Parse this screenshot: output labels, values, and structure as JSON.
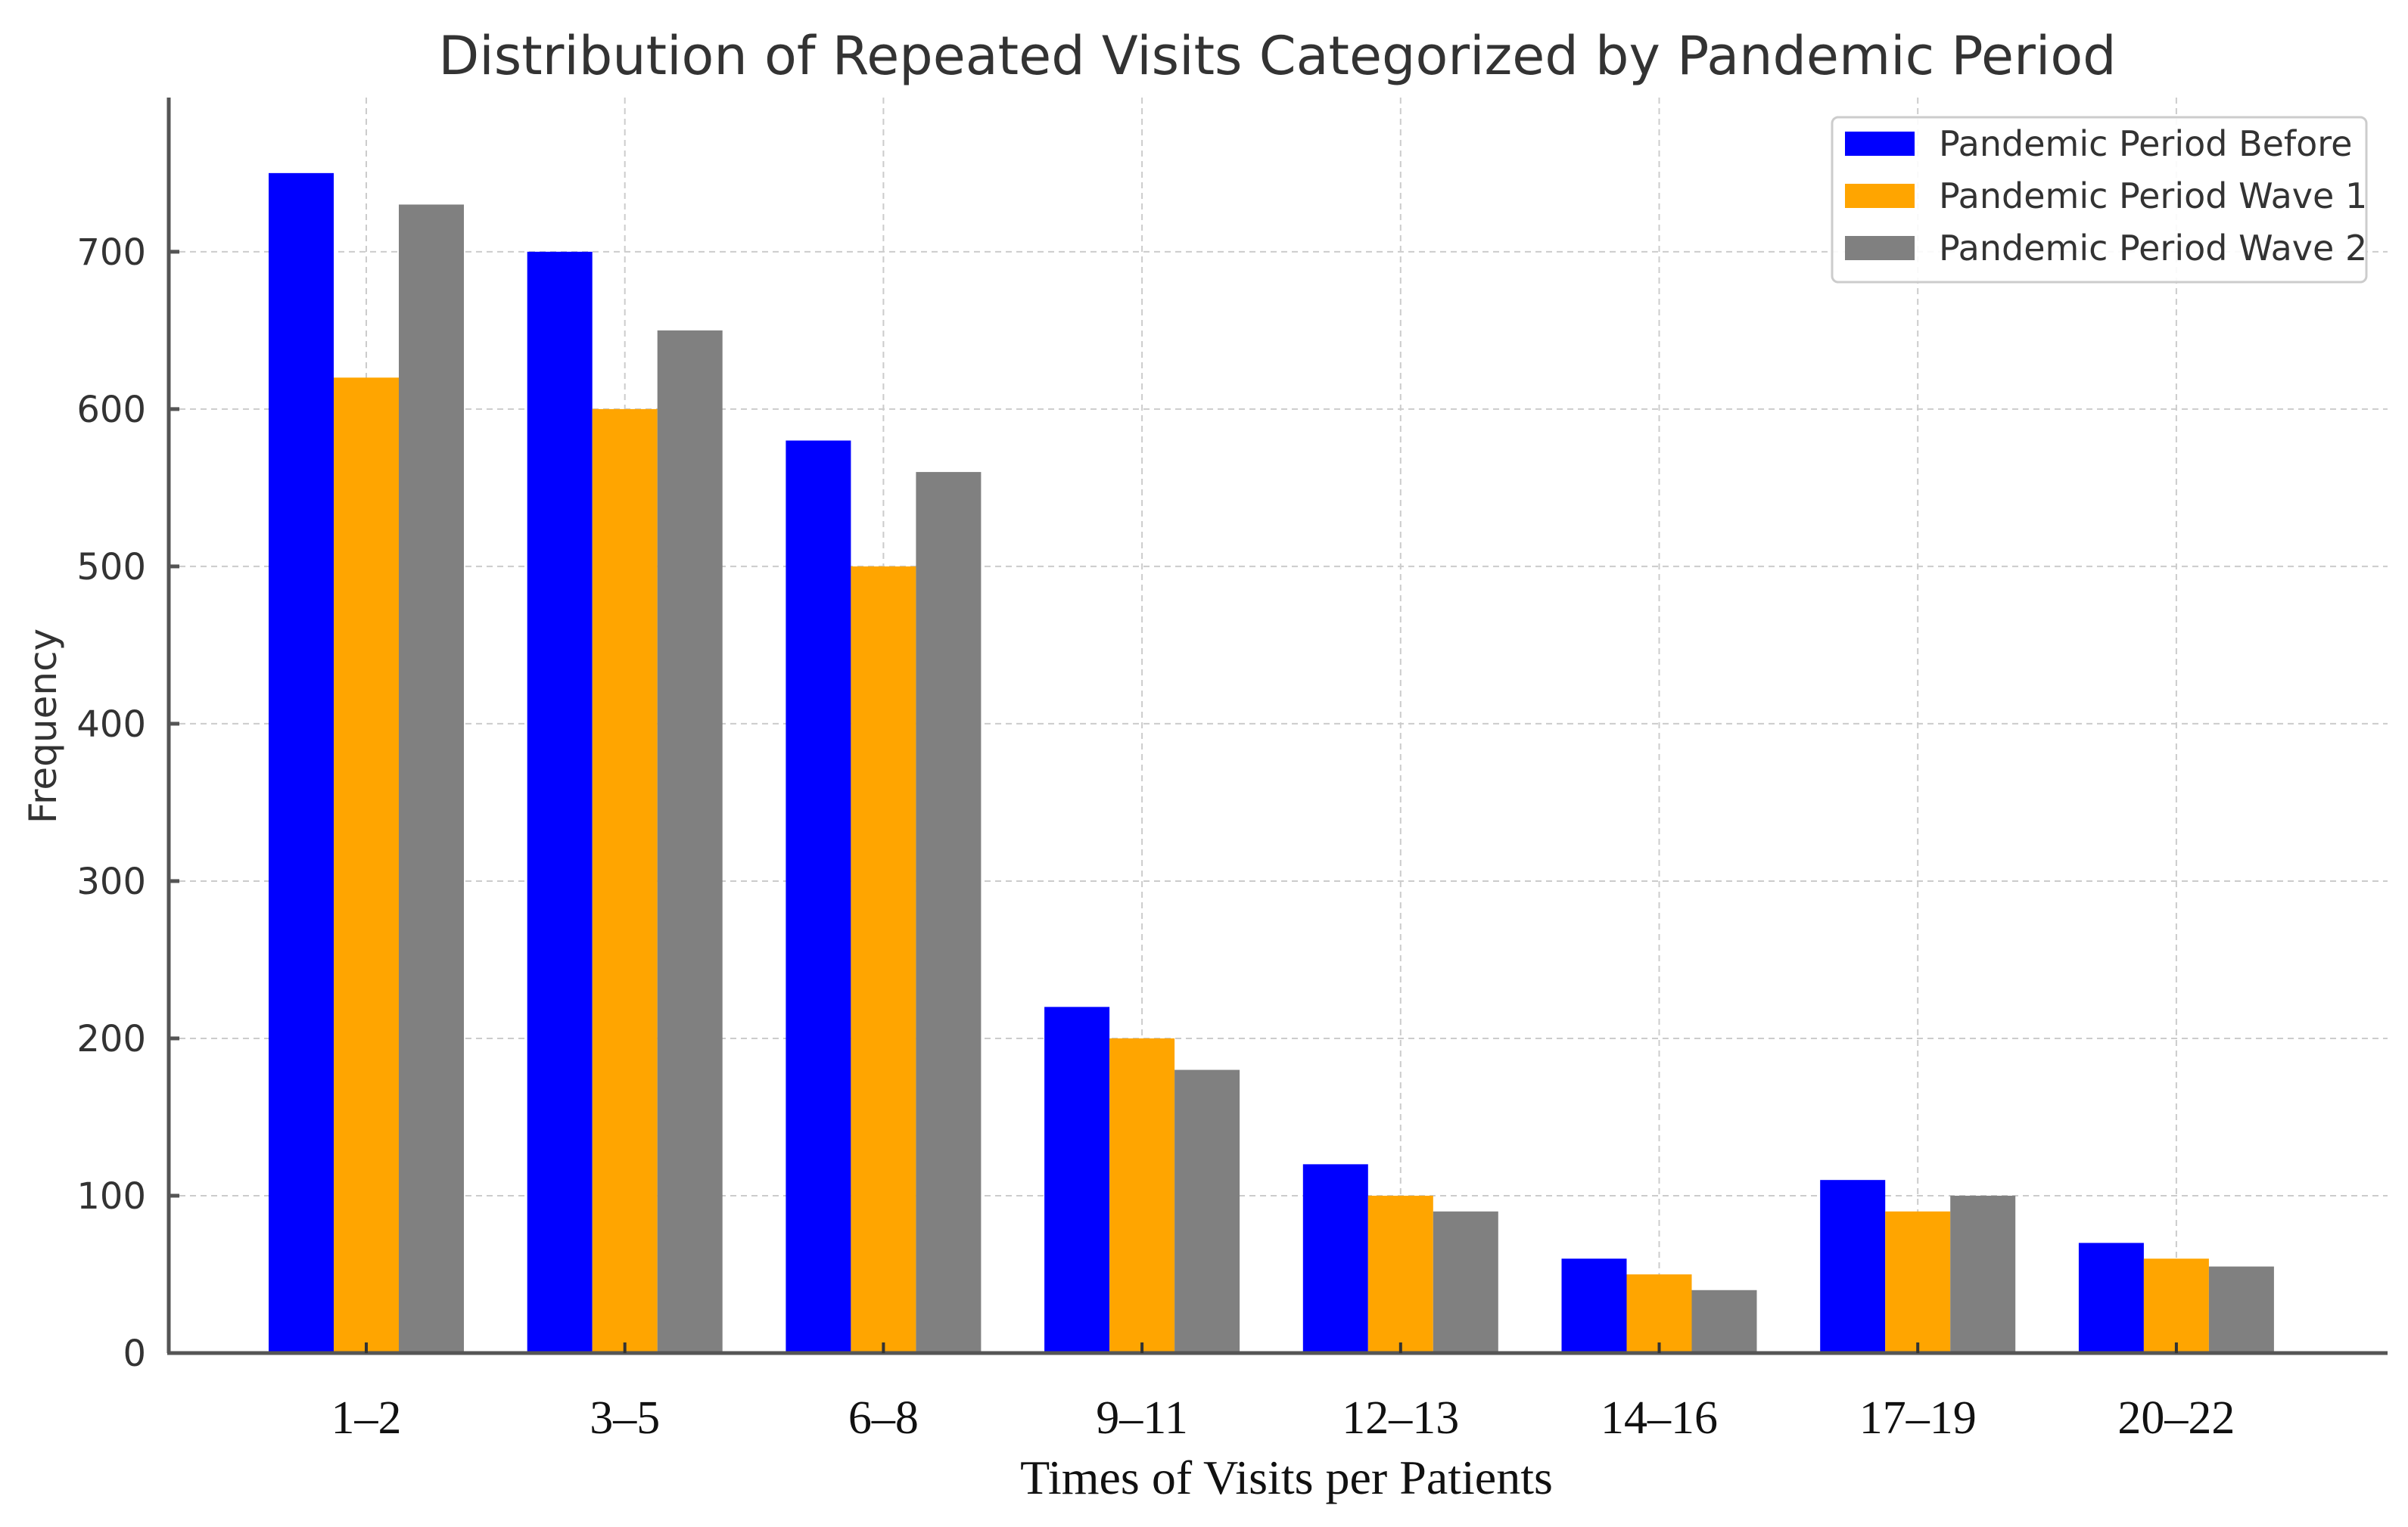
{
  "chart_data": {
    "type": "bar",
    "title": "Distribution of Repeated Visits Categorized by Pandemic Period",
    "xlabel": "Times of Visits per Patients",
    "ylabel": "Frequency",
    "categories": [
      "1–2",
      "3–5",
      "6–8",
      "9–11",
      "12–13",
      "14–16",
      "17–19",
      "20–22"
    ],
    "series": [
      {
        "name": "Pandemic Period Before",
        "color": "#0000ff",
        "values": [
          750,
          700,
          580,
          220,
          120,
          60,
          110,
          70
        ]
      },
      {
        "name": "Pandemic Period Wave 1",
        "color": "#ffa500",
        "values": [
          620,
          600,
          500,
          200,
          100,
          50,
          90,
          60
        ]
      },
      {
        "name": "Pandemic Period Wave 2",
        "color": "#808080",
        "values": [
          730,
          650,
          560,
          180,
          90,
          40,
          100,
          55
        ]
      }
    ],
    "ylim": [
      0,
      798
    ],
    "yticks": [
      0,
      100,
      200,
      300,
      400,
      500,
      600,
      700
    ],
    "grid": true,
    "legend_position": "top-right"
  }
}
